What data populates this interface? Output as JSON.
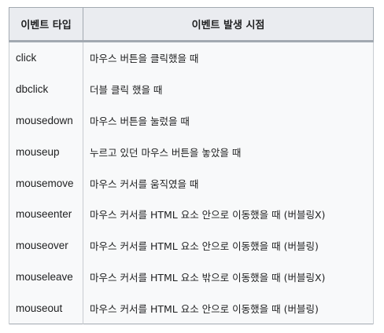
{
  "table": {
    "headers": [
      "이벤트 타입",
      "이벤트 발생 시점"
    ],
    "rows": [
      {
        "event": "click",
        "description": "마우스 버튼을 클릭했을 때"
      },
      {
        "event": "dbclick",
        "description": "더블 클릭 했을 때"
      },
      {
        "event": "mousedown",
        "description": "마우스 버튼을 눌렀을 때"
      },
      {
        "event": "mouseup",
        "description": "누르고 있던 마우스 버튼을 놓았을 때"
      },
      {
        "event": "mousemove",
        "description": "마우스 커서를 움직였을 때"
      },
      {
        "event": "mouseenter",
        "description": "마우스 커서를 HTML 요소 안으로 이동했을 때 (버블링X)"
      },
      {
        "event": "mouseover",
        "description": "마우스 커서를 HTML 요소 안으로 이동했을 때 (버블링)"
      },
      {
        "event": "mouseleave",
        "description": "마우스 커서를 HTML 요소 밖으로 이동했을 때 (버블링X)"
      },
      {
        "event": "mouseout",
        "description": "마우스 커서를 HTML 요소 안으로 이동했을 때 (버블링)"
      }
    ]
  }
}
